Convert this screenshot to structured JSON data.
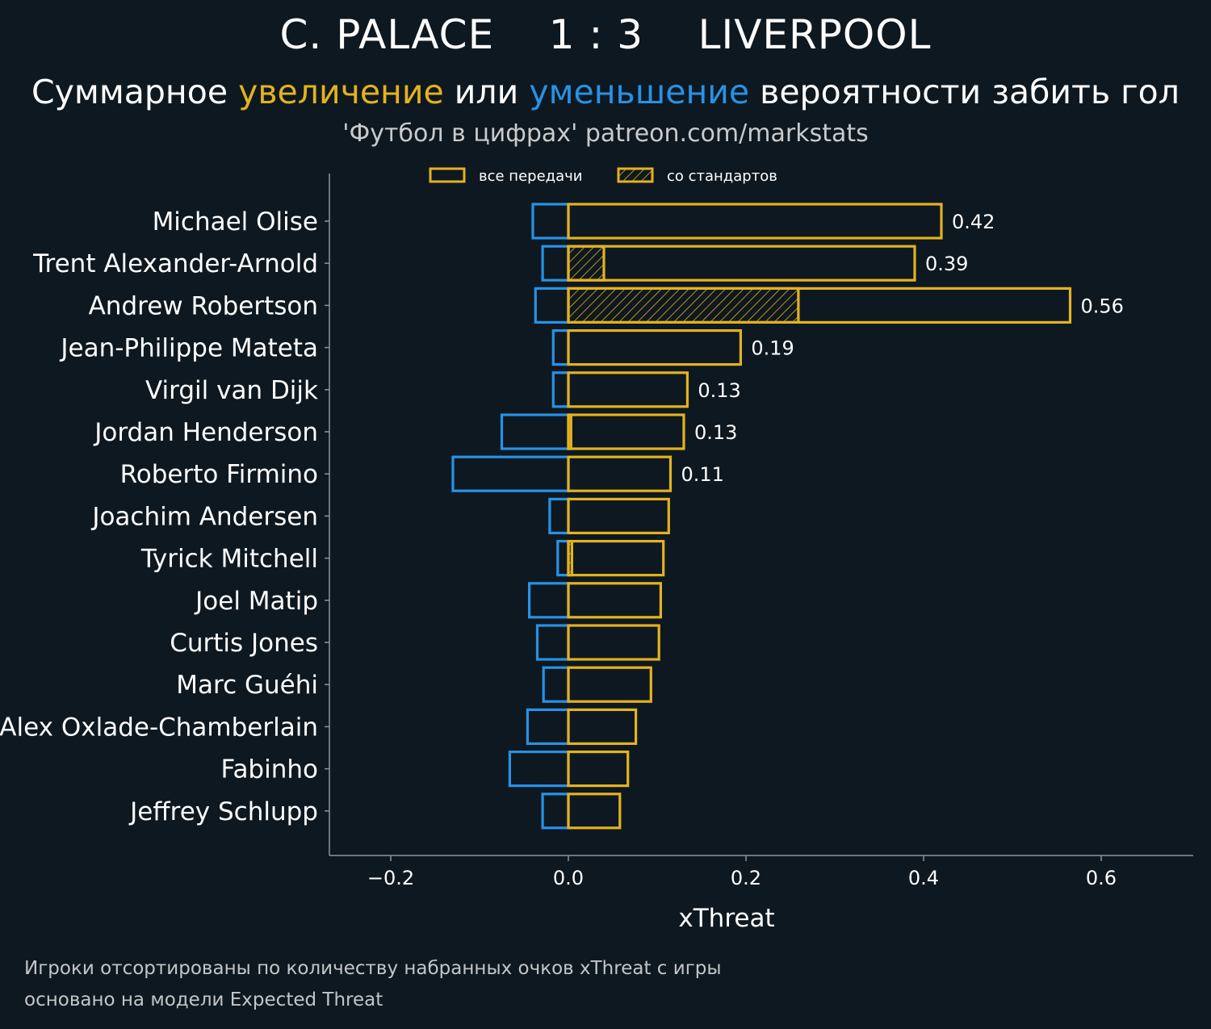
{
  "header": {
    "home_team": "C. PALACE",
    "score": "1 : 3",
    "away_team": "LIVERPOOL",
    "subtitle_part1": "Суммарное ",
    "subtitle_increase": "увеличение",
    "subtitle_part2": " или ",
    "subtitle_decrease": "уменьшение",
    "subtitle_part3": " вероятности забить гол",
    "source": "'Футбол в цифрах' patreon.com/markstats"
  },
  "footnotes": {
    "line1": "Игроки отсортированы по количеству набранных очков xThreat с игры",
    "line2": "основано на модели Expected Threat"
  },
  "colors": {
    "background": "#0e1820",
    "increase": "#e3b21e",
    "decrease": "#2792e6",
    "axis": "#8a9499"
  },
  "chart_data": {
    "type": "bar",
    "orientation": "horizontal",
    "xlabel": "xThreat",
    "xlim": [
      -0.27,
      0.7
    ],
    "xticks": [
      -0.2,
      0.0,
      0.2,
      0.4,
      0.6
    ],
    "xtick_labels": [
      "−0.2",
      "0.0",
      "0.2",
      "0.4",
      "0.6"
    ],
    "legend": {
      "placement": "top",
      "entries": [
        "все передачи",
        "со стандартов"
      ]
    },
    "categories": [
      "Michael Olise",
      "Trent Alexander-Arnold",
      "Andrew Robertson",
      "Jean-Philippe Mateta",
      "Virgil van Dijk",
      "Jordan Henderson",
      "Roberto Firmino",
      "Joachim Andersen",
      "Tyrick Mitchell",
      "Joel Matip",
      "Curtis Jones",
      "Marc Guéhi",
      "Alex Oxlade-Chamberlain",
      "Fabinho",
      "Jeffrey Schlupp"
    ],
    "series": [
      {
        "name": "все передачи",
        "values": [
          0.42,
          0.39,
          0.565,
          0.194,
          0.134,
          0.13,
          0.115,
          0.113,
          0.107,
          0.104,
          0.102,
          0.093,
          0.076,
          0.067,
          0.058
        ]
      },
      {
        "name": "со стандартов",
        "values": [
          0.0,
          0.04,
          0.259,
          0.0,
          0.0,
          0.003,
          0.0,
          0.0,
          0.004,
          0.0,
          0.0,
          0.0,
          0.0,
          0.0,
          0.0
        ]
      },
      {
        "values": [
          -0.04,
          -0.029,
          -0.037,
          -0.017,
          -0.017,
          -0.075,
          -0.13,
          -0.021,
          -0.012,
          -0.044,
          -0.035,
          -0.028,
          -0.046,
          -0.066,
          -0.029
        ]
      }
    ],
    "data_labels": [
      "0.42",
      "0.39",
      "0.56",
      "0.19",
      "0.13",
      "0.13",
      "0.11",
      "",
      "",
      "",
      "",
      "",
      "",
      "",
      ""
    ]
  }
}
